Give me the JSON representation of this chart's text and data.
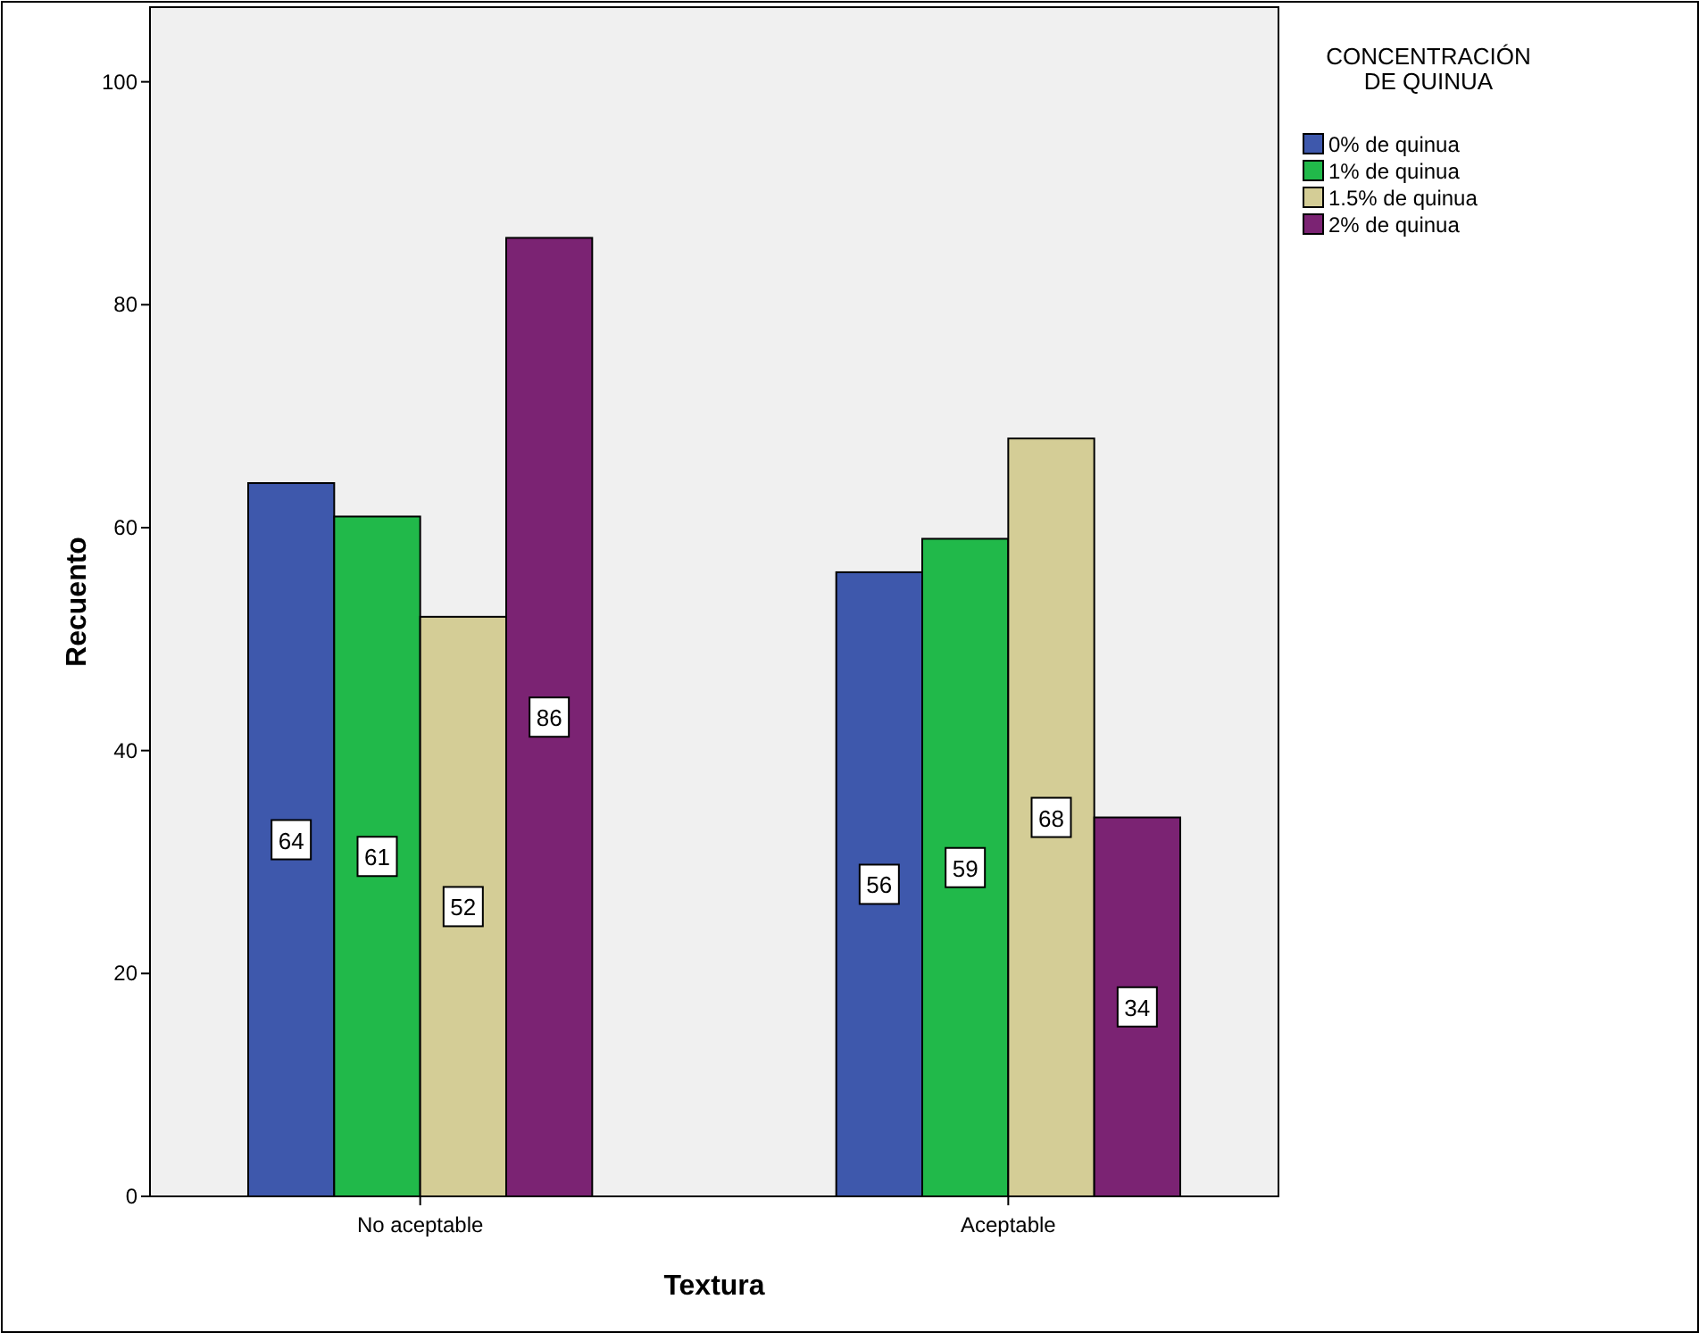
{
  "chart_data": {
    "type": "bar",
    "xlabel": "Textura",
    "ylabel": "Recuento",
    "legend_title": "CONCENTRACIÓN DE QUINUA",
    "categories": [
      "No aceptable",
      "Aceptable"
    ],
    "series": [
      {
        "name": "0% de quinua",
        "color": "#3e58ac",
        "values": [
          64,
          56
        ]
      },
      {
        "name": "1% de quinua",
        "color": "#21b94a",
        "values": [
          61,
          59
        ]
      },
      {
        "name": "1.5% de quinua",
        "color": "#d4cd96",
        "values": [
          52,
          68
        ]
      },
      {
        "name": "2% de quinua",
        "color": "#7b2373",
        "values": [
          86,
          34
        ]
      }
    ],
    "ylim": [
      0,
      106.7
    ],
    "yticks": [
      0,
      20,
      40,
      60,
      80,
      100
    ],
    "data_labels": true,
    "legend": "top right",
    "grid": false
  }
}
